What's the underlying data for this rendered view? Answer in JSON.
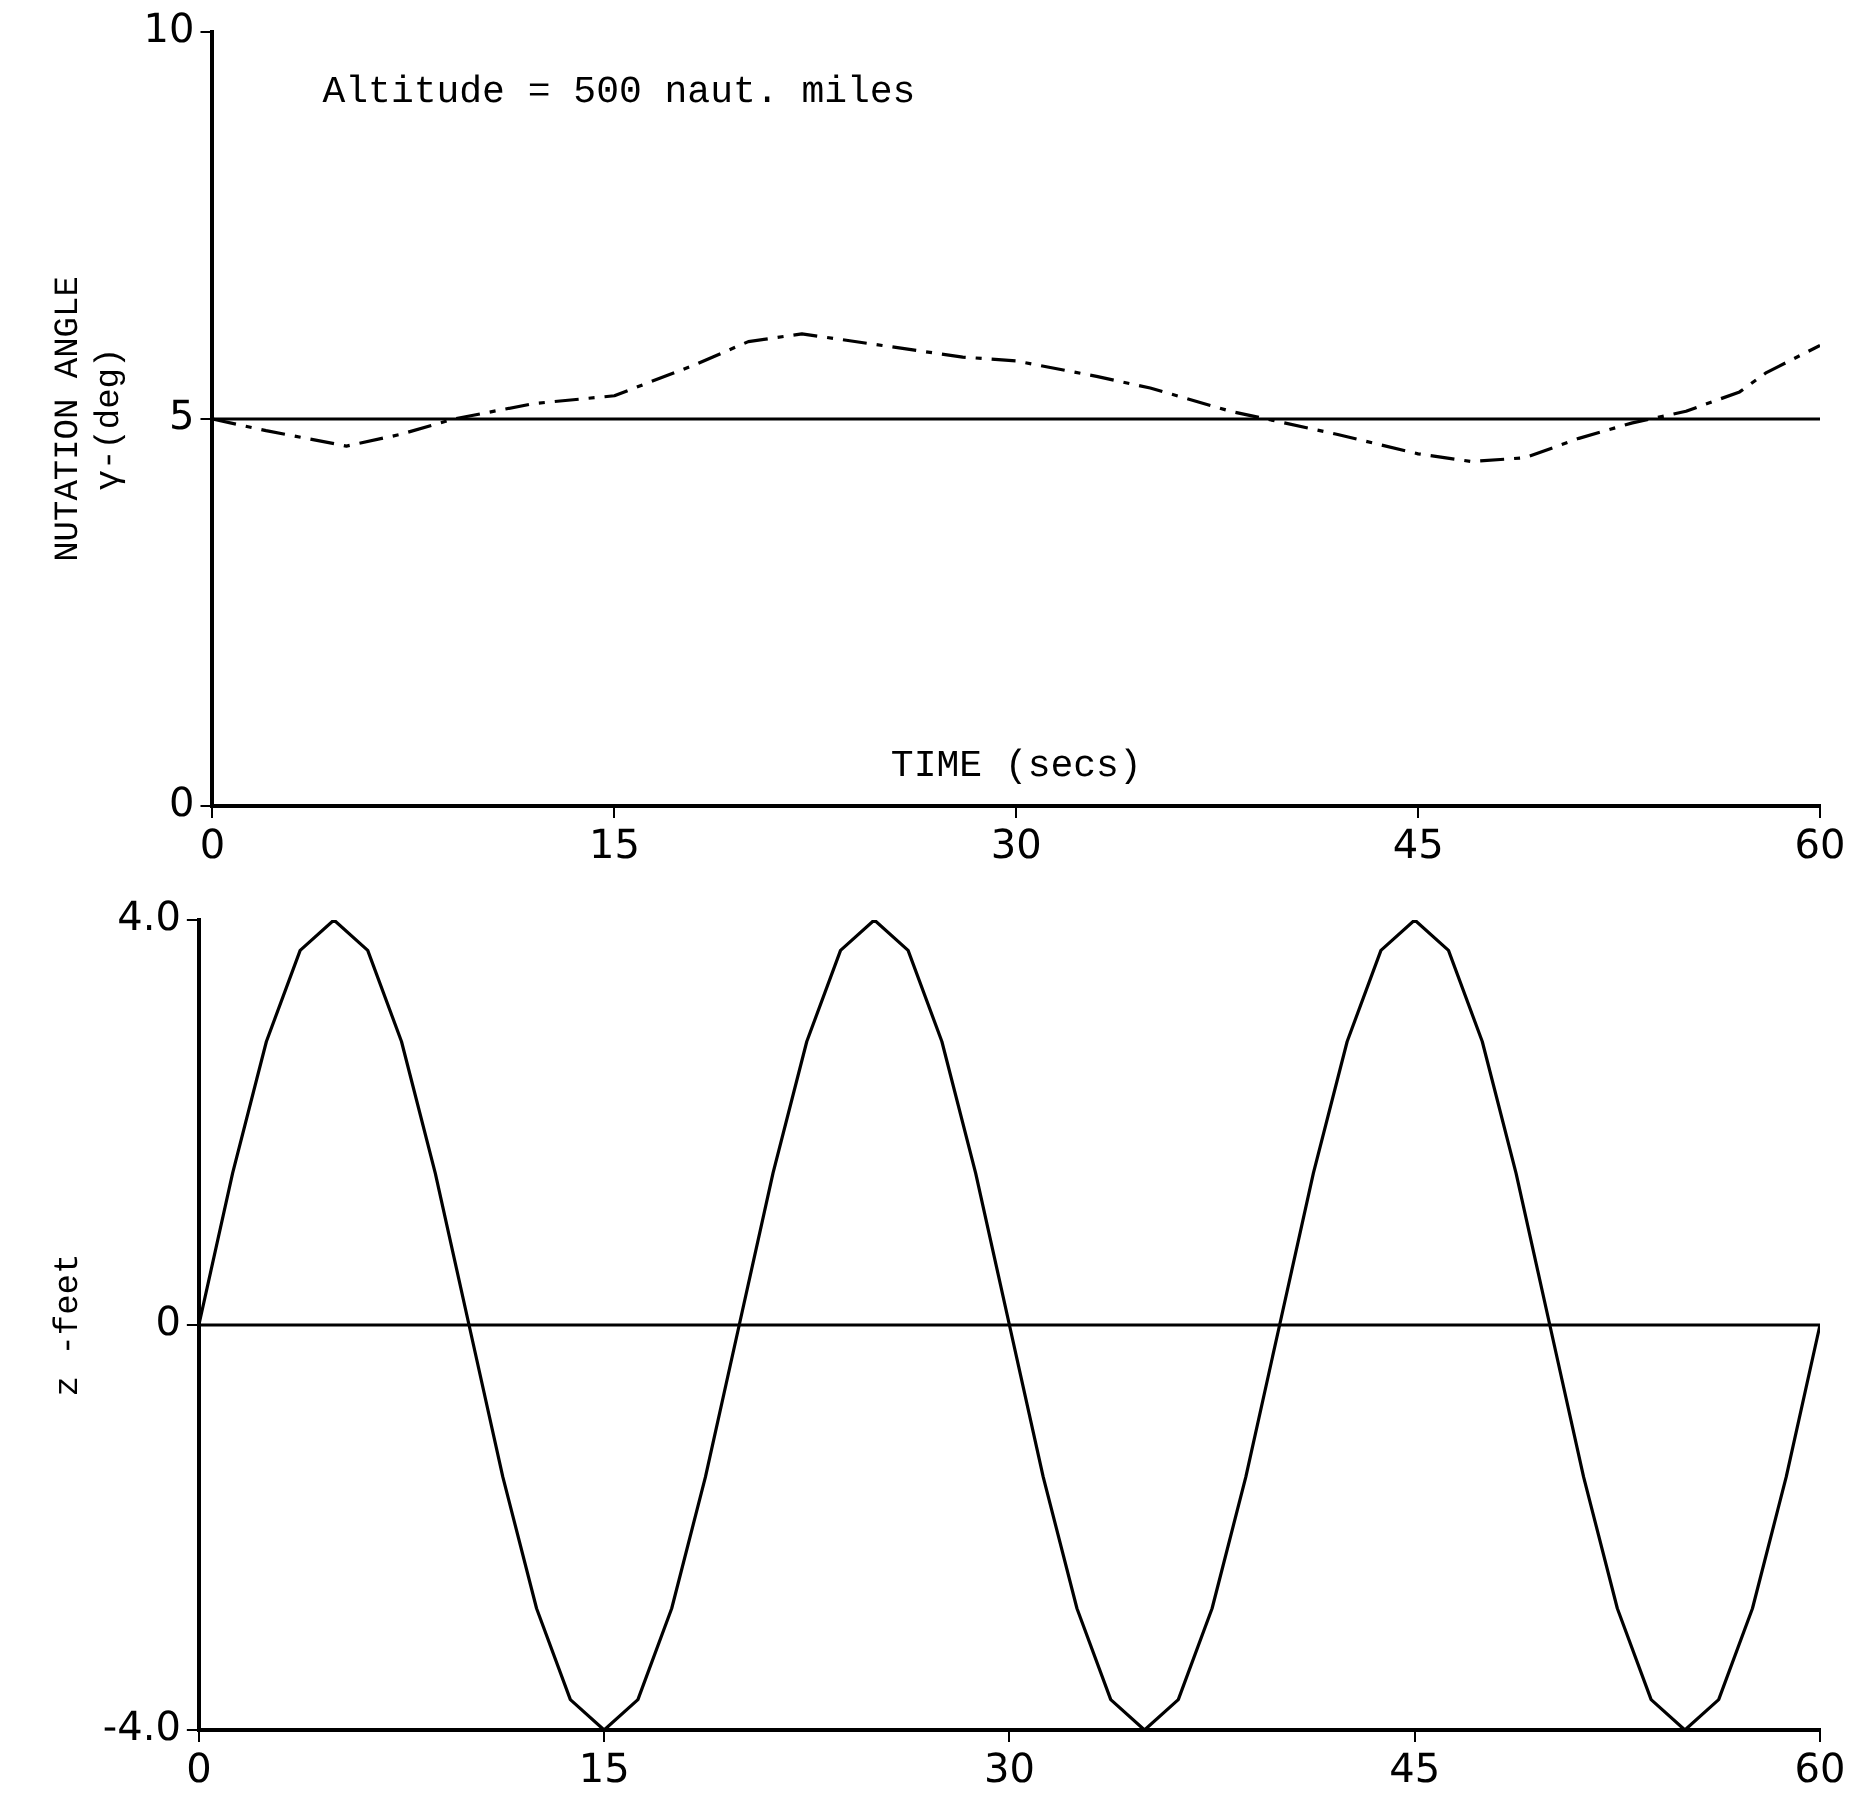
{
  "chart_data": [
    {
      "type": "line",
      "xlabel": "TIME (secs)",
      "ylabel": "NUTATION ANGLE\nγ-(deg)",
      "annotations": [
        "Altitude = 500 naut. miles"
      ],
      "xlim": [
        0,
        60
      ],
      "xticks": [
        0,
        15,
        30,
        45,
        60
      ],
      "ylim": [
        0,
        10
      ],
      "yticks": [
        0,
        5,
        10
      ],
      "marker": "none",
      "legend": false,
      "grid": false,
      "ref_lines": [
        {
          "axis": "y",
          "value": 5,
          "color": "#000000"
        }
      ],
      "series": [
        {
          "color": "#000000",
          "line_style": "dashed",
          "x": [
            0,
            2,
            5,
            7,
            9,
            12,
            15,
            18,
            20,
            22,
            25,
            28,
            30,
            33,
            35,
            38,
            40,
            42,
            45,
            47,
            49,
            51,
            53,
            55,
            57,
            58,
            60
          ],
          "values": [
            5,
            4.85,
            4.65,
            4.8,
            5,
            5.2,
            5.3,
            5.7,
            6,
            6.1,
            5.95,
            5.8,
            5.75,
            5.55,
            5.4,
            5.1,
            4.95,
            4.8,
            4.55,
            4.45,
            4.5,
            4.75,
            4.95,
            5.1,
            5.35,
            5.6,
            5.95
          ]
        }
      ]
    },
    {
      "type": "line",
      "ylabel": "z -feet",
      "xlim": [
        0,
        60
      ],
      "xticks": [
        0,
        15,
        30,
        45,
        60
      ],
      "ylim": [
        -4,
        4
      ],
      "yticks": [
        {
          "value": -4,
          "label": "-4.0"
        },
        0,
        {
          "value": 4,
          "label": "4.0"
        }
      ],
      "marker": "none",
      "legend": false,
      "grid": false,
      "ref_lines": [
        {
          "axis": "y",
          "value": 0,
          "color": "#000000"
        }
      ],
      "series": [
        {
          "color": "#000000",
          "line_style": "solid",
          "x": [
            0,
            1.25,
            2.5,
            3.75,
            5,
            6.25,
            7.5,
            8.75,
            10,
            11.25,
            12.5,
            13.75,
            15,
            16.25,
            17.5,
            18.75,
            20,
            21.25,
            22.5,
            23.75,
            25,
            26.25,
            27.5,
            28.75,
            30,
            31.25,
            32.5,
            33.75,
            35,
            36.25,
            37.5,
            38.75,
            40,
            41.25,
            42.5,
            43.75,
            45,
            46.25,
            47.5,
            48.75,
            50,
            51.25,
            52.5,
            53.75,
            55,
            56.25,
            57.5,
            58.75,
            60
          ],
          "values": [
            0,
            1.5,
            2.8,
            3.7,
            4,
            3.7,
            2.8,
            1.5,
            0,
            -1.5,
            -2.8,
            -3.7,
            -4,
            -3.7,
            -2.8,
            -1.5,
            0,
            1.5,
            2.8,
            3.7,
            4,
            3.7,
            2.8,
            1.5,
            0,
            -1.5,
            -2.8,
            -3.7,
            -4,
            -3.7,
            -2.8,
            -1.5,
            0,
            1.5,
            2.8,
            3.7,
            4,
            3.7,
            2.8,
            1.5,
            0,
            -1.5,
            -2.8,
            -3.7,
            -4,
            -3.7,
            -2.8,
            -1.5,
            0
          ]
        }
      ]
    }
  ]
}
